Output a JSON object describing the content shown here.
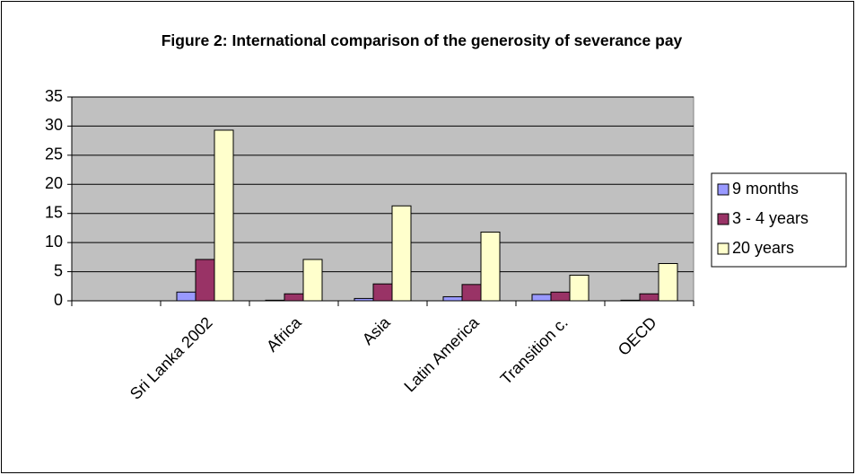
{
  "chart_data": {
    "type": "bar",
    "title": "Figure 2: International comparison of the generosity of severance pay",
    "categories": [
      null,
      "Sri Lanka 2002",
      "Africa",
      "Asia",
      "Latin America",
      "Transition c.",
      "OECD"
    ],
    "series": [
      {
        "name": "9 months",
        "color": "#9999FF",
        "values": [
          null,
          1.5,
          0.1,
          0.4,
          0.7,
          1.1,
          0.1
        ]
      },
      {
        "name": "3 - 4 years",
        "color": "#993366",
        "values": [
          null,
          7.1,
          1.2,
          2.9,
          2.8,
          1.5,
          1.2
        ]
      },
      {
        "name": "20 years",
        "color": "#FFFFCC",
        "values": [
          null,
          29.3,
          7.1,
          16.3,
          11.8,
          4.4,
          6.4
        ]
      }
    ],
    "ylim": [
      0,
      35
    ],
    "yticks": [
      0,
      5,
      10,
      15,
      20,
      25,
      30,
      35
    ],
    "grid": true,
    "legend": "right"
  }
}
